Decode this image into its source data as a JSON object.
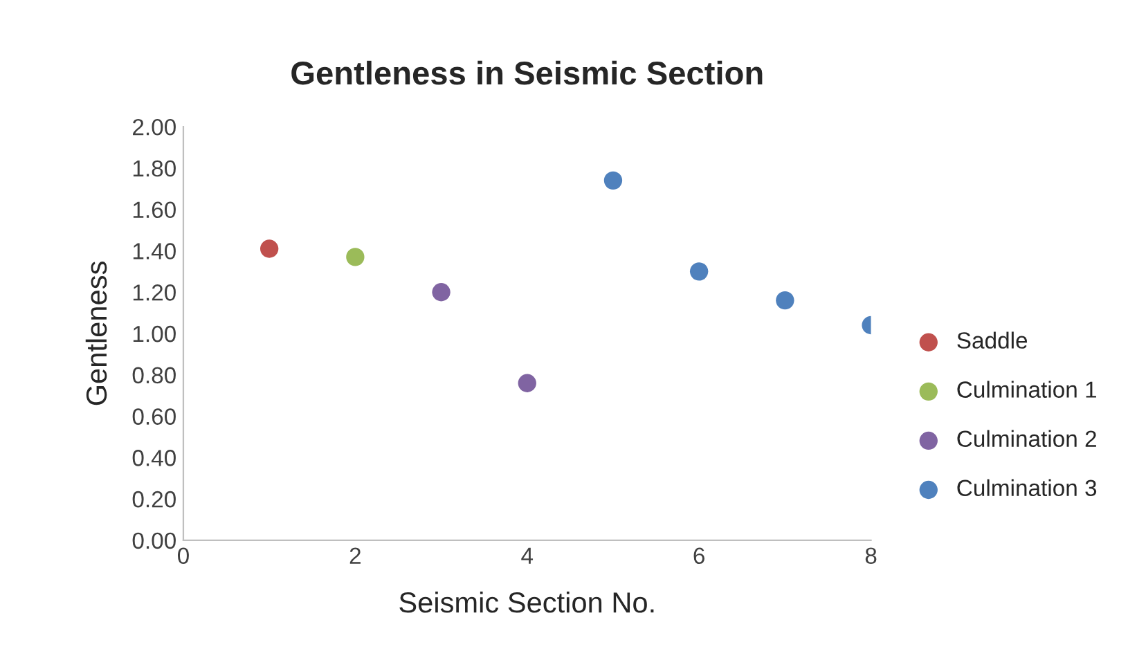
{
  "chart_data": {
    "type": "scatter",
    "title": "Gentleness in Seismic Section",
    "xlabel": "Seismic Section No.",
    "ylabel": "Gentleness",
    "series": [
      {
        "name": "Saddle",
        "color": "#c0504d",
        "x": [
          1
        ],
        "values": [
          1.41
        ]
      },
      {
        "name": "Culmination 1",
        "color": "#9bbb59",
        "x": [
          2
        ],
        "values": [
          1.37
        ]
      },
      {
        "name": "Culmination 2",
        "color": "#8064a2",
        "x": [
          3,
          4
        ],
        "values": [
          1.2,
          0.76
        ]
      },
      {
        "name": "Culmination 3",
        "color": "#4f81bd",
        "x": [
          5,
          6,
          7,
          8
        ],
        "values": [
          1.74,
          1.3,
          1.16,
          1.04
        ]
      }
    ],
    "xlim": [
      0,
      8
    ],
    "xticks": [
      0,
      2,
      4,
      6,
      8
    ],
    "ylim": [
      0,
      2
    ],
    "yticks": [
      {
        "value": 0,
        "label": "0.00"
      },
      {
        "value": 0.2,
        "label": "0.20"
      },
      {
        "value": 0.4,
        "label": "0.40"
      },
      {
        "value": 0.6,
        "label": "0.60"
      },
      {
        "value": 0.8,
        "label": "0.80"
      },
      {
        "value": 1.0,
        "label": "1.00"
      },
      {
        "value": 1.2,
        "label": "1.20"
      },
      {
        "value": 1.4,
        "label": "1.40"
      },
      {
        "value": 1.6,
        "label": "1.60"
      },
      {
        "value": 1.8,
        "label": "1.80"
      },
      {
        "value": 2.0,
        "label": "2.00"
      }
    ],
    "grid": false,
    "legend": "right",
    "marker": "circle"
  }
}
